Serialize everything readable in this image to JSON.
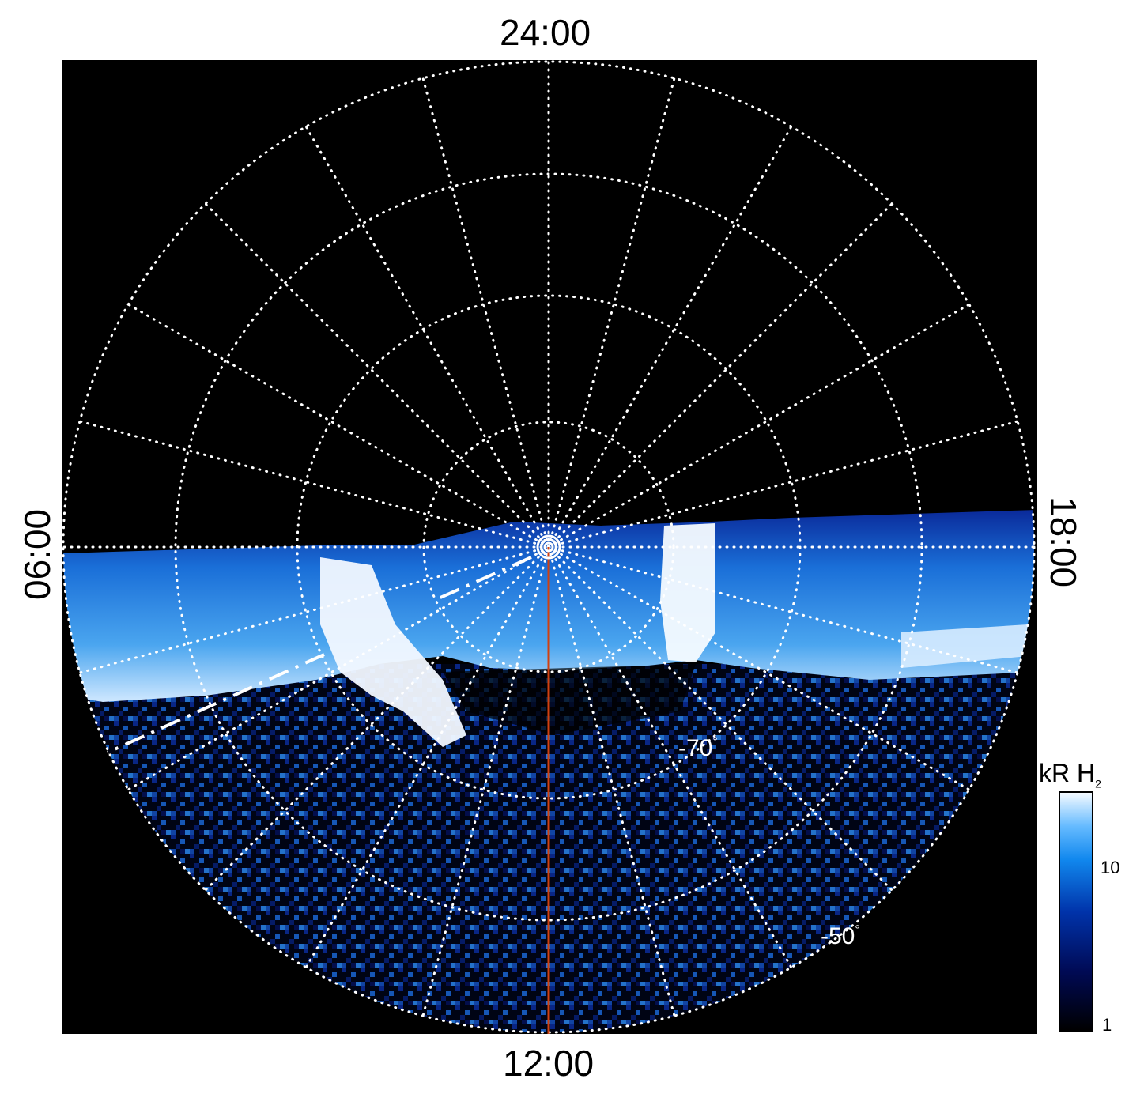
{
  "local_time_labels": {
    "top": "24:00",
    "bottom": "12:00",
    "left": "06:00",
    "right": "18:00"
  },
  "latitude_labels": {
    "lat_70": "-70",
    "lat_50": "-50",
    "degree_symbol": "°"
  },
  "colorbar": {
    "title_main": "kR H",
    "title_sub": "2",
    "tick_10": "10",
    "tick_1": "1",
    "scale": "log",
    "range": [
      1,
      30
    ],
    "colors": [
      "#000000",
      "#000a55",
      "#0033aa",
      "#1188ee",
      "#66bbff",
      "#f4faff"
    ]
  },
  "colors": {
    "background": "#000000",
    "grid": "#ffffff",
    "meridian_line": "#d04010"
  }
}
